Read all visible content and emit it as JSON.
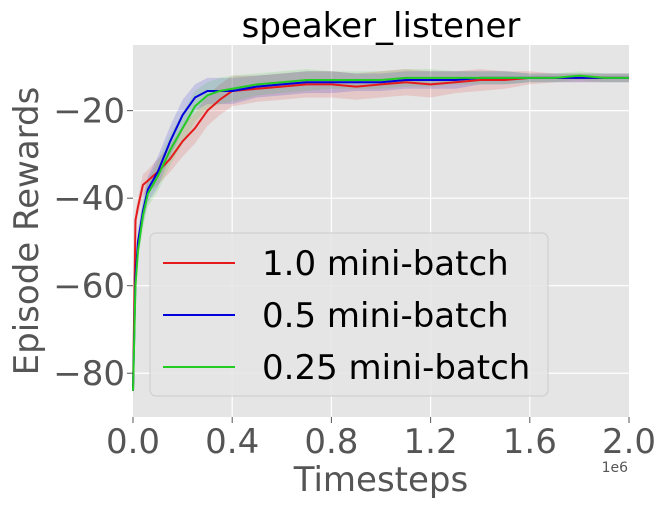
{
  "chart_data": {
    "type": "line",
    "title": "speaker_listener",
    "xlabel": "Timesteps",
    "ylabel": "Episode Rewards",
    "x_multiplier_label": "1e6",
    "xlim": [
      0,
      2.0
    ],
    "ylim": [
      -90,
      -5
    ],
    "xticks": [
      0.0,
      0.4,
      0.8,
      1.2,
      1.6,
      2.0
    ],
    "xtick_labels": [
      "0.0",
      "0.4",
      "0.8",
      "1.2",
      "1.6",
      "2.0"
    ],
    "yticks": [
      -80,
      -60,
      -40,
      -20
    ],
    "ytick_labels": [
      "−80",
      "−60",
      "−40",
      "−20"
    ],
    "grid": true,
    "legend_position": "lower-left",
    "series": [
      {
        "name": "1.0 mini-batch",
        "color": "#e41a1c",
        "x": [
          0.0,
          0.01,
          0.02,
          0.04,
          0.06,
          0.1,
          0.15,
          0.2,
          0.25,
          0.3,
          0.35,
          0.4,
          0.5,
          0.6,
          0.7,
          0.8,
          0.9,
          1.0,
          1.1,
          1.2,
          1.3,
          1.4,
          1.5,
          1.6,
          1.7,
          1.8,
          1.9,
          2.0
        ],
        "y": [
          -84,
          -45,
          -42,
          -37,
          -36,
          -34,
          -31,
          -27,
          -24,
          -20,
          -17.5,
          -15.5,
          -15,
          -14.5,
          -14,
          -14,
          -14.5,
          -14,
          -13.5,
          -14,
          -13.5,
          -13,
          -13,
          -12.5,
          -12.5,
          -12.5,
          -12.5,
          -12.5
        ],
        "band": [
          2.0,
          2.0,
          2.0,
          2.5,
          2.5,
          3.0,
          3.0,
          3.5,
          3.5,
          3.5,
          3.5,
          3.5,
          3.0,
          3.0,
          3.0,
          3.0,
          3.0,
          3.0,
          3.0,
          3.0,
          2.5,
          2.5,
          2.0,
          1.5,
          1.0,
          1.0,
          1.0,
          1.0
        ]
      },
      {
        "name": "0.5 mini-batch",
        "color": "#0000dd",
        "x": [
          0.0,
          0.01,
          0.02,
          0.04,
          0.06,
          0.1,
          0.15,
          0.2,
          0.25,
          0.3,
          0.35,
          0.4,
          0.5,
          0.6,
          0.7,
          0.8,
          0.9,
          1.0,
          1.1,
          1.2,
          1.3,
          1.4,
          1.5,
          1.6,
          1.7,
          1.8,
          1.9,
          2.0
        ],
        "y": [
          -84,
          -58,
          -50,
          -43,
          -38,
          -34,
          -27,
          -21,
          -17,
          -15.5,
          -15.5,
          -15.5,
          -14.5,
          -14,
          -13.5,
          -13.5,
          -13.5,
          -13.5,
          -13,
          -13,
          -13,
          -12.5,
          -12.5,
          -12.5,
          -12.5,
          -12.5,
          -12.5,
          -12.5
        ],
        "band": [
          2.0,
          2.5,
          2.5,
          3.0,
          3.0,
          3.5,
          3.5,
          3.5,
          3.0,
          3.0,
          3.0,
          3.0,
          2.5,
          2.5,
          2.5,
          2.5,
          2.0,
          2.0,
          2.0,
          2.0,
          2.0,
          1.5,
          1.5,
          1.0,
          1.0,
          1.0,
          1.0,
          1.0
        ]
      },
      {
        "name": "0.25 mini-batch",
        "color": "#22cc22",
        "x": [
          0.0,
          0.01,
          0.02,
          0.04,
          0.06,
          0.1,
          0.15,
          0.2,
          0.25,
          0.3,
          0.35,
          0.4,
          0.5,
          0.6,
          0.7,
          0.8,
          0.9,
          1.0,
          1.1,
          1.2,
          1.3,
          1.4,
          1.5,
          1.6,
          1.7,
          1.8,
          1.9,
          2.0
        ],
        "y": [
          -84,
          -60,
          -52,
          -44,
          -39,
          -35,
          -29,
          -24,
          -19,
          -16.5,
          -15.5,
          -15,
          -14,
          -13.5,
          -13,
          -13,
          -13,
          -13,
          -12.5,
          -12.5,
          -12.5,
          -12.5,
          -12.5,
          -12.5,
          -12.5,
          -12,
          -12.5,
          -12.5
        ],
        "band": [
          2.0,
          2.5,
          2.5,
          3.0,
          3.0,
          3.5,
          3.5,
          3.5,
          3.5,
          3.0,
          3.0,
          3.0,
          2.5,
          2.5,
          2.5,
          2.0,
          2.0,
          2.0,
          2.0,
          2.0,
          1.5,
          1.5,
          1.5,
          1.0,
          1.0,
          1.0,
          1.0,
          1.0
        ]
      }
    ]
  }
}
